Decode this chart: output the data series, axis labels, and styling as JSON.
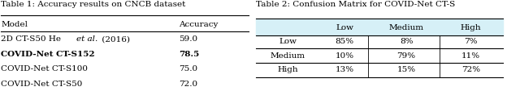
{
  "table1_title": "Table 1: Accuracy results on CNCB dataset",
  "table1_headers": [
    "Model",
    "Accuracy"
  ],
  "table1_rows": [
    [
      "2D CT-S50 He et al. (2016)",
      "59.0"
    ],
    [
      "COVID-Net CT-S152",
      "78.5"
    ],
    [
      "COVID-Net CT-S100",
      "75.0"
    ],
    [
      "COVID-Net CT-S50",
      "72.0"
    ]
  ],
  "table1_bold_row": 1,
  "table2_title": "Table 2: Confusion Matrix for COVID-Net CT-S",
  "table2_headers": [
    "",
    "Low",
    "Medium",
    "High"
  ],
  "table2_rows": [
    [
      "Low",
      "85%",
      "8%",
      "7%"
    ],
    [
      "Medium",
      "10%",
      "79%",
      "11%"
    ],
    [
      "High",
      "13%",
      "15%",
      "72%"
    ]
  ],
  "table2_header_bg": "#d6f0f7",
  "bg_color": "#ffffff",
  "font_size": 7.5,
  "title_font_size": 7.5
}
